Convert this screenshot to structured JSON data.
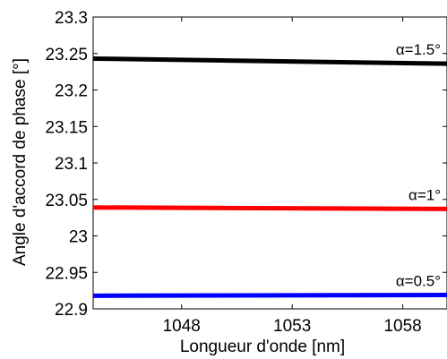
{
  "chart_data": {
    "type": "line",
    "title": "",
    "xlabel": "Longueur d'onde [nm]",
    "ylabel": "Angle d'accord de phase [°]",
    "xlim": [
      1044,
      1060
    ],
    "ylim": [
      22.9,
      23.3
    ],
    "x_ticks": [
      1048,
      1053,
      1058
    ],
    "x_tick_labels": [
      "1048",
      "1053",
      "1058"
    ],
    "y_ticks": [
      22.9,
      22.95,
      23,
      23.05,
      23.1,
      23.15,
      23.2,
      23.25,
      23.3
    ],
    "y_tick_labels": [
      "22.9",
      "22.95",
      "23",
      "23.05",
      "23.1",
      "23.15",
      "23.2",
      "23.25",
      "23.3"
    ],
    "grid": false,
    "legend": "none",
    "series": [
      {
        "name": "α=1.5°",
        "color": "#000000",
        "x": [
          1044,
          1060
        ],
        "y": [
          23.243,
          23.236
        ]
      },
      {
        "name": "α=1°",
        "color": "#ff0000",
        "x": [
          1044,
          1060
        ],
        "y": [
          23.039,
          23.037
        ]
      },
      {
        "name": "α=0.5°",
        "color": "#0000ff",
        "x": [
          1044,
          1060
        ],
        "y": [
          22.918,
          22.919
        ]
      }
    ]
  }
}
